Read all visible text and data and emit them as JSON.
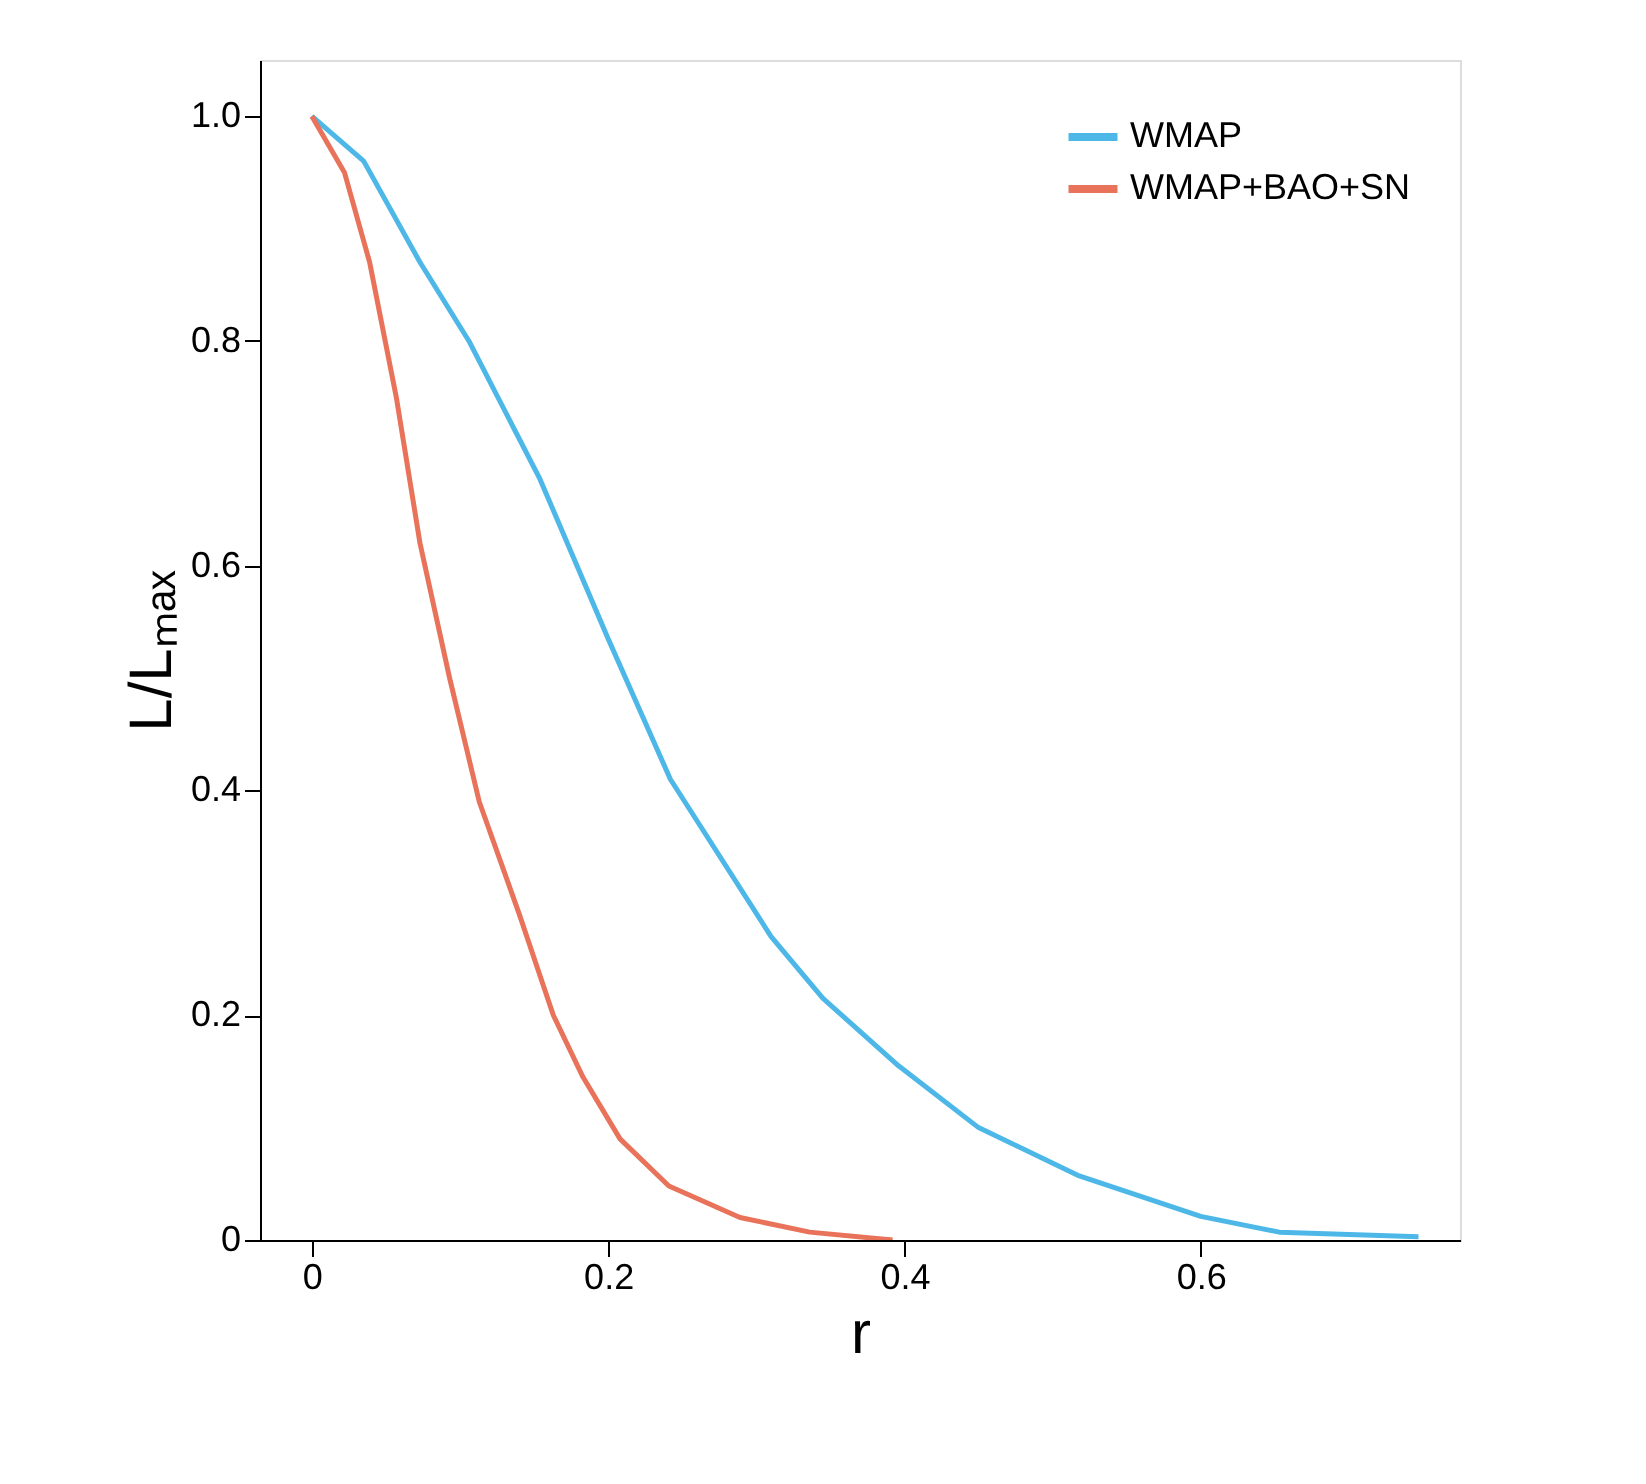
{
  "chart_data": {
    "type": "line",
    "xlabel": "r",
    "ylabel": "L/Lₘₐₓ",
    "xlim": [
      -0.035,
      0.775
    ],
    "ylim": [
      0,
      1.05
    ],
    "xticks": [
      0,
      0.2,
      0.4,
      0.6
    ],
    "yticks": [
      0,
      0.2,
      0.4,
      0.6,
      0.8,
      {
        "value": 1,
        "label": "1.0"
      }
    ],
    "grid": false,
    "legend": "top right",
    "marker": "none",
    "line_style": "solid",
    "series": [
      {
        "name": "WMAP",
        "color": "#4db8e8",
        "x": [
          0,
          0.035,
          0.073,
          0.106,
          0.154,
          0.2,
          0.242,
          0.31,
          0.345,
          0.396,
          0.45,
          0.518,
          0.6,
          0.653,
          0.747
        ],
        "values": [
          1.0,
          0.96,
          0.87,
          0.8,
          0.677,
          0.535,
          0.41,
          0.27,
          0.215,
          0.155,
          0.1,
          0.057,
          0.021,
          0.007,
          0.003
        ]
      },
      {
        "name": "WMAP+BAO+SN",
        "color": "#e8735a",
        "x": [
          0,
          0.022,
          0.039,
          0.057,
          0.073,
          0.093,
          0.113,
          0.14,
          0.163,
          0.183,
          0.208,
          0.241,
          0.289,
          0.336,
          0.392
        ],
        "values": [
          1.0,
          0.95,
          0.87,
          0.75,
          0.62,
          0.5,
          0.39,
          0.29,
          0.2,
          0.145,
          0.09,
          0.048,
          0.02,
          0.007,
          0.0
        ]
      }
    ]
  }
}
